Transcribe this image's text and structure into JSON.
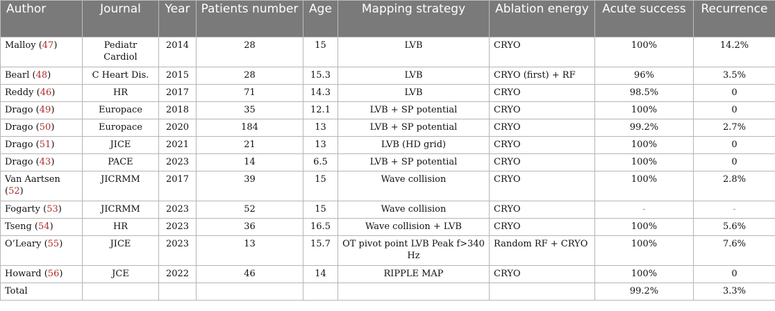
{
  "headers": {
    "author": "Author",
    "journal": "Journal",
    "year": "Year",
    "patients": "Patients number",
    "age": "Age",
    "mapping": "Mapping strategy",
    "energy": "Ablation energy",
    "success": "Acute success",
    "recurrence": "Recurrence"
  },
  "rows": [
    {
      "name": "Malloy",
      "ref": "47",
      "journal": "Pediatr Cardiol",
      "year": "2014",
      "patients": "28",
      "age": "15",
      "mapping": "LVB",
      "energy": "CRYO",
      "success": "100%",
      "recurrence": "14.2%"
    },
    {
      "name": "Bearl",
      "ref": "48",
      "journal": "C Heart Dis.",
      "year": "2015",
      "patients": "28",
      "age": "15.3",
      "mapping": "LVB",
      "energy": "CRYO (first) + RF",
      "success": "96%",
      "recurrence": "3.5%"
    },
    {
      "name": "Reddy",
      "ref": "46",
      "journal": "HR",
      "year": "2017",
      "patients": "71",
      "age": "14.3",
      "mapping": "LVB",
      "energy": "CRYO",
      "success": "98.5%",
      "recurrence": "0"
    },
    {
      "name": "Drago",
      "ref": "49",
      "journal": "Europace",
      "year": "2018",
      "patients": "35",
      "age": "12.1",
      "mapping": "LVB + SP potential",
      "energy": "CRYO",
      "success": "100%",
      "recurrence": "0"
    },
    {
      "name": "Drago",
      "ref": "50",
      "journal": "Europace",
      "year": "2020",
      "patients": "184",
      "age": "13",
      "mapping": "LVB + SP potential",
      "energy": "CRYO",
      "success": "99.2%",
      "recurrence": "2.7%"
    },
    {
      "name": "Drago",
      "ref": "51",
      "journal": "JICE",
      "year": "2021",
      "patients": "21",
      "age": "13",
      "mapping": "LVB (HD grid)",
      "energy": "CRYO",
      "success": "100%",
      "recurrence": "0"
    },
    {
      "name": "Drago",
      "ref": "43",
      "journal": "PACE",
      "year": "2023",
      "patients": "14",
      "age": "6.5",
      "mapping": "LVB + SP potential",
      "energy": "CRYO",
      "success": "100%",
      "recurrence": "0"
    },
    {
      "name": "Van Aartsen",
      "ref": "52",
      "journal": "JICRMM",
      "year": "2017",
      "patients": "39",
      "age": "15",
      "mapping": "Wave collision",
      "energy": "CRYO",
      "success": "100%",
      "recurrence": "2.8%"
    },
    {
      "name": "Fogarty",
      "ref": "53",
      "journal": "JICRMM",
      "year": "2023",
      "patients": "52",
      "age": "15",
      "mapping": "Wave collision",
      "energy": "CRYO",
      "success": "-",
      "recurrence": "-"
    },
    {
      "name": "Tseng",
      "ref": "54",
      "journal": "HR",
      "year": "2023",
      "patients": "36",
      "age": "16.5",
      "mapping": "Wave collision + LVB",
      "energy": "CRYO",
      "success": "100%",
      "recurrence": "5.6%"
    },
    {
      "name": "O’Leary",
      "ref": "55",
      "journal": "JICE",
      "year": "2023",
      "patients": "13",
      "age": "15.7",
      "mapping": "OT pivot point LVB Peak f>340 Hz",
      "energy": "Random RF + CRYO",
      "success": "100%",
      "recurrence": "7.6%"
    },
    {
      "name": "Howard",
      "ref": "56",
      "journal": "JCE",
      "year": "2022",
      "patients": "46",
      "age": "14",
      "mapping": "RIPPLE MAP",
      "energy": "CRYO",
      "success": "100%",
      "recurrence": "0"
    }
  ],
  "total": {
    "label": "Total",
    "success": "99.2%",
    "recurrence": "3.3%"
  }
}
